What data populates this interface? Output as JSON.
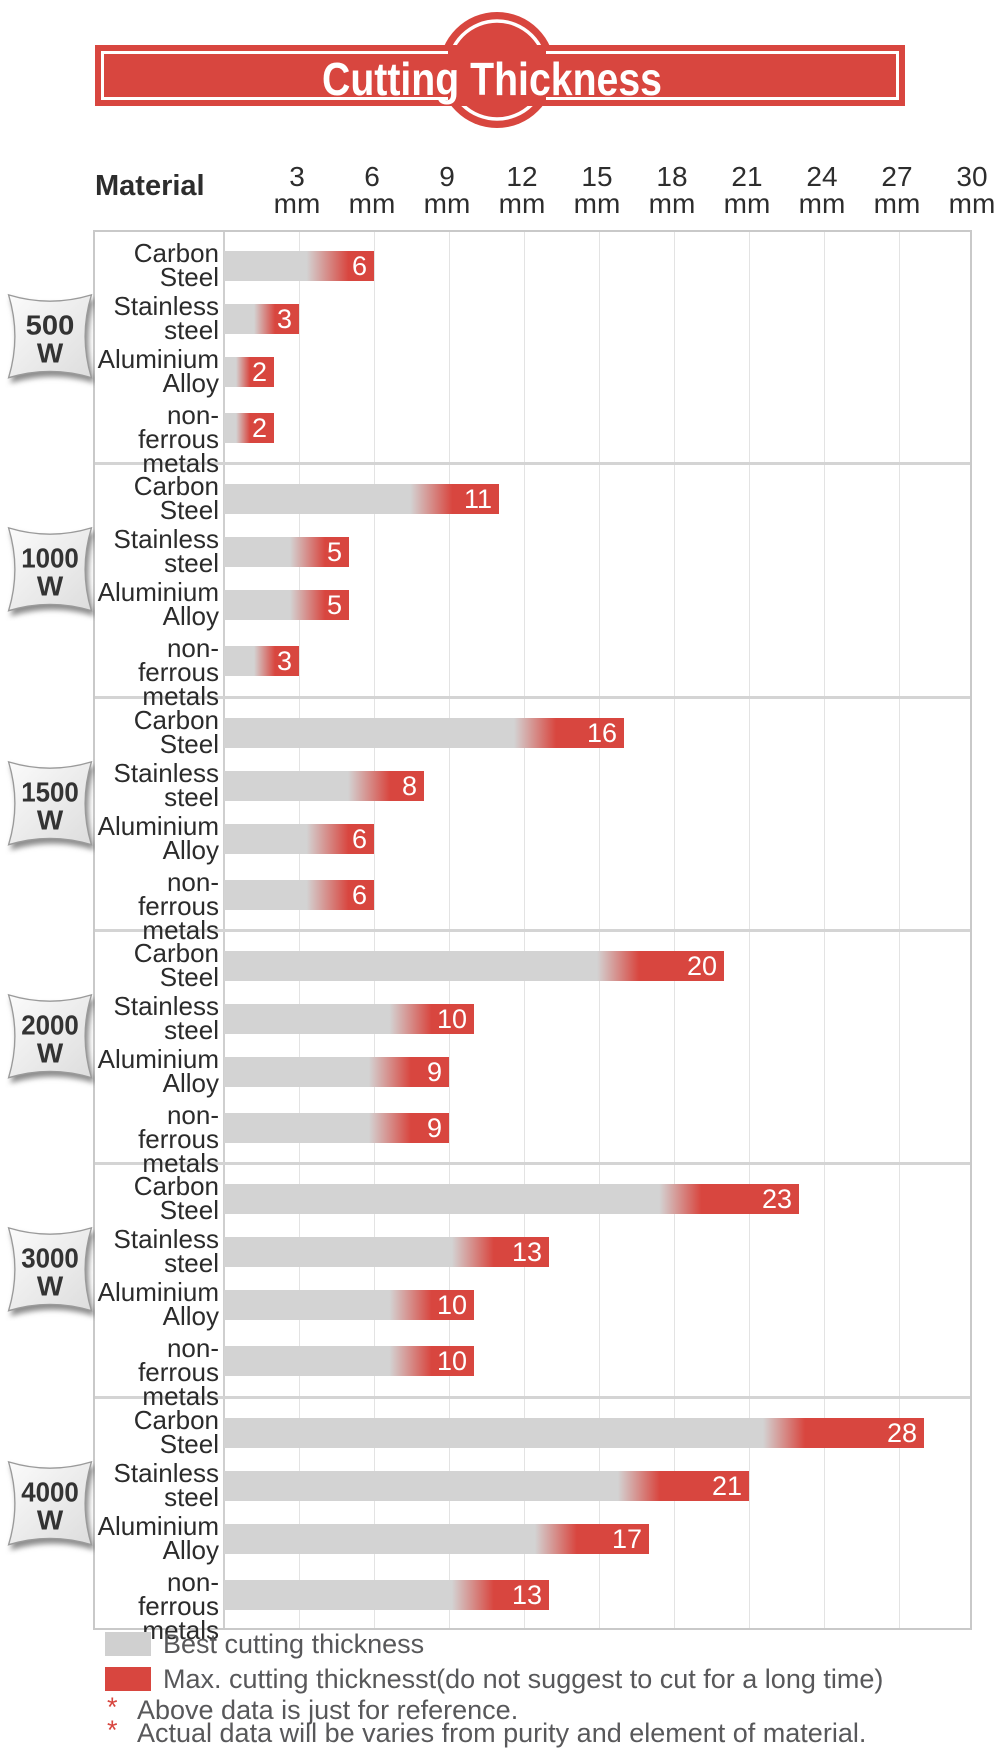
{
  "title": "Cutting Thickness",
  "axis": {
    "material_header": "Material",
    "tick_unit": "mm"
  },
  "chart_data": {
    "type": "bar",
    "orientation": "horizontal",
    "title": "Cutting Thickness",
    "unit": "mm",
    "xlim": [
      0,
      30
    ],
    "x_ticks_mm": [
      3,
      6,
      9,
      12,
      15,
      18,
      21,
      24,
      27,
      30
    ],
    "grid": true,
    "categories": [
      "Carbon Steel",
      "Stainless steel",
      "Aluminium Alloy",
      "non-ferrous metals"
    ],
    "category_lines": [
      [
        "Carbon",
        "Steel"
      ],
      [
        "Stainless",
        "steel"
      ],
      [
        "Aluminium",
        "Alloy"
      ],
      [
        "non-ferrous",
        "metals"
      ]
    ],
    "series": [
      {
        "name": "500 W",
        "power_lines": [
          "500",
          "W"
        ],
        "values": [
          6,
          3,
          2,
          2
        ]
      },
      {
        "name": "1000 W",
        "power_lines": [
          "1000",
          "W"
        ],
        "values": [
          11,
          5,
          5,
          3
        ]
      },
      {
        "name": "1500 W",
        "power_lines": [
          "1500",
          "W"
        ],
        "values": [
          16,
          8,
          6,
          6
        ]
      },
      {
        "name": "2000 W",
        "power_lines": [
          "2000",
          "W"
        ],
        "values": [
          20,
          10,
          9,
          9
        ]
      },
      {
        "name": "3000 W",
        "power_lines": [
          "3000",
          "W"
        ],
        "values": [
          23,
          13,
          10,
          10
        ]
      },
      {
        "name": "4000 W",
        "power_lines": [
          "4000",
          "W"
        ],
        "values": [
          28,
          21,
          17,
          13
        ]
      }
    ],
    "bar_meaning": {
      "gray_segment": "Best cutting thickness",
      "red_tip_segment": "Max. cutting thickness"
    }
  },
  "legend": [
    {
      "swatch_color": "#d0d0d0",
      "label": "Best cutting thickness"
    },
    {
      "swatch_color": "#d8463f",
      "label": "Max. cutting thicknesst(do not suggest to cut for a long time)"
    }
  ],
  "footnotes": [
    {
      "marker": "*",
      "text": "Above data is just for reference."
    },
    {
      "marker": "*",
      "text": "Actual data will be varies from purity and element of material."
    }
  ],
  "colors": {
    "red": "#d8463f",
    "bar_gray": "#d3d3d3",
    "grid": "#e3e3e3",
    "frame": "#c9c9c9",
    "text_dark": "#2d2d2d",
    "text_gray": "#58585a"
  }
}
